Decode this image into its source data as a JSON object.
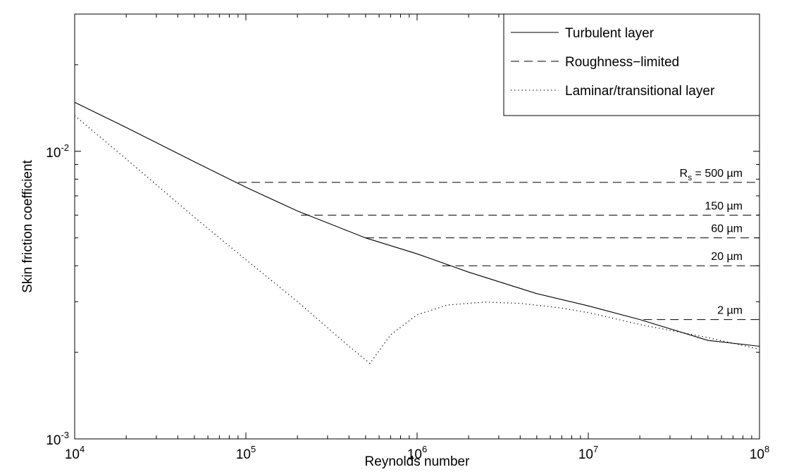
{
  "chart_data": {
    "type": "line",
    "xlabel": "Reynolds number",
    "ylabel": "Skin friction coefficient",
    "x_scale": "log",
    "y_scale": "log",
    "xlim": [
      10000,
      100000000
    ],
    "ylim": [
      0.001,
      0.03
    ],
    "x_ticks": [
      {
        "value": 10000,
        "base": "10",
        "exp": "4"
      },
      {
        "value": 100000,
        "base": "10",
        "exp": "5"
      },
      {
        "value": 1000000,
        "base": "10",
        "exp": "6"
      },
      {
        "value": 10000000,
        "base": "10",
        "exp": "7"
      },
      {
        "value": 100000000,
        "base": "10",
        "exp": "8"
      }
    ],
    "y_ticks": [
      {
        "value": 0.001,
        "base": "10",
        "exp": "-3"
      },
      {
        "value": 0.01,
        "base": "10",
        "exp": "-2"
      }
    ],
    "grid": false,
    "legend": {
      "position": "top-right",
      "entries": [
        {
          "label": "Turbulent layer",
          "style": "solid"
        },
        {
          "label": "Roughness−limited",
          "style": "dashed"
        },
        {
          "label": "Laminar/transitional layer",
          "style": "dotted"
        }
      ]
    },
    "series": [
      {
        "name": "Turbulent layer",
        "style": "solid",
        "x": [
          10000,
          20000,
          50000,
          100000,
          200000,
          500000,
          1000000,
          2000000,
          5000000,
          10000000,
          20000000,
          50000000,
          100000000
        ],
        "y": [
          0.0148,
          0.0121,
          0.0092,
          0.0075,
          0.0062,
          0.005,
          0.0044,
          0.0038,
          0.0032,
          0.0029,
          0.0026,
          0.0022,
          0.0021
        ]
      },
      {
        "name": "Laminar/transitional layer",
        "style": "dotted",
        "x": [
          10000,
          20000,
          50000,
          100000,
          200000,
          400000,
          530000,
          700000,
          1000000,
          1500000,
          2500000,
          4000000,
          7000000,
          10000000,
          20000000,
          50000000,
          100000000
        ],
        "y": [
          0.0133,
          0.0094,
          0.0059,
          0.0042,
          0.003,
          0.0021,
          0.00183,
          0.0023,
          0.0027,
          0.00292,
          0.00299,
          0.00296,
          0.00285,
          0.00275,
          0.0025,
          0.00225,
          0.00205
        ]
      }
    ],
    "roughness_lines": [
      {
        "label": "R",
        "sub": "s",
        "suffix": " = 500 µm",
        "y": 0.0078,
        "x_start": 90000
      },
      {
        "label": "150 µm",
        "y": 0.006,
        "x_start": 210000
      },
      {
        "label": "60 µm",
        "y": 0.005,
        "x_start": 500000
      },
      {
        "label": "20 µm",
        "y": 0.004,
        "x_start": 1400000
      },
      {
        "label": "2 µm",
        "y": 0.0026,
        "x_start": 21000000
      }
    ]
  }
}
